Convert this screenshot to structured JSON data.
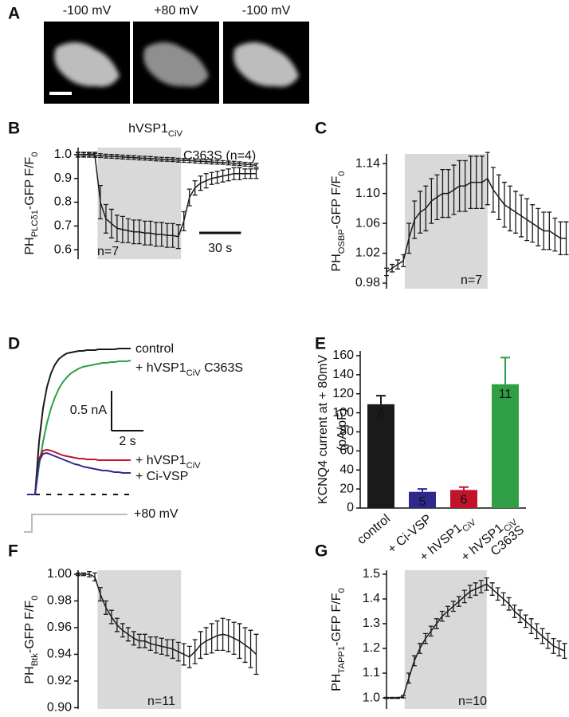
{
  "panel_a": {
    "panel": "A",
    "labels": [
      "-100 mV",
      "+80 mV",
      "-100 mV"
    ]
  },
  "chart_data": [
    {
      "panel": "B",
      "type": "line",
      "title": [
        "hVSP1",
        "CiV"
      ],
      "ylabel": [
        "PH",
        "PLCδ1",
        "-GFP  F/F",
        "0"
      ],
      "x": [
        0,
        4,
        8,
        12,
        16,
        20,
        24,
        28,
        32,
        36,
        40,
        44,
        48,
        52,
        56,
        60,
        64,
        68,
        72,
        76,
        80,
        84,
        88,
        92,
        96,
        100,
        104,
        108,
        112,
        116,
        120,
        124,
        128
      ],
      "xlim": [
        0,
        130
      ],
      "ylim": [
        0.56,
        1.03
      ],
      "yticks": [
        0.6,
        0.7,
        0.8,
        0.9,
        {
          "value": 1,
          "label": "1.0"
        }
      ],
      "shade": [
        14,
        74
      ],
      "scalebar": {
        "value": 30,
        "label": "30 s"
      },
      "annotations": [
        "C363S (n=4)",
        "n=7"
      ],
      "series": [
        {
          "color": "#1a1a1a",
          "values": [
            1.0,
            1.0,
            1.0,
            1.0,
            0.8,
            0.73,
            0.71,
            0.69,
            0.685,
            0.68,
            0.675,
            0.675,
            0.67,
            0.67,
            0.665,
            0.665,
            0.66,
            0.66,
            0.655,
            0.72,
            0.82,
            0.86,
            0.88,
            0.89,
            0.9,
            0.905,
            0.91,
            0.915,
            0.92,
            0.92,
            0.92,
            0.92,
            0.92
          ],
          "errors": [
            0.01,
            0.01,
            0.01,
            0.01,
            0.07,
            0.06,
            0.06,
            0.055,
            0.055,
            0.05,
            0.05,
            0.05,
            0.05,
            0.05,
            0.05,
            0.05,
            0.05,
            0.05,
            0.05,
            0.04,
            0.035,
            0.03,
            0.03,
            0.03,
            0.025,
            0.025,
            0.025,
            0.025,
            0.025,
            0.025,
            0.02,
            0.02,
            0.02
          ]
        },
        {
          "color": "#1a1a1a",
          "values": [
            1.0,
            1.0,
            0.998,
            0.997,
            0.996,
            0.994,
            0.993,
            0.992,
            0.99,
            0.989,
            0.988,
            0.986,
            0.985,
            0.984,
            0.982,
            0.981,
            0.98,
            0.979,
            0.977,
            0.976,
            0.975,
            0.973,
            0.972,
            0.971,
            0.969,
            0.968,
            0.967,
            0.965,
            0.964,
            0.962,
            0.96,
            0.958,
            0.955
          ],
          "errors": [
            0.008,
            0.008,
            0.008,
            0.008,
            0.008,
            0.008,
            0.008,
            0.008,
            0.008,
            0.008,
            0.008,
            0.008,
            0.008,
            0.008,
            0.008,
            0.008,
            0.008,
            0.008,
            0.008,
            0.008,
            0.008,
            0.008,
            0.008,
            0.008,
            0.008,
            0.008,
            0.008,
            0.008,
            0.008,
            0.008,
            0.008,
            0.008,
            0.008
          ]
        }
      ]
    },
    {
      "panel": "C",
      "type": "line",
      "ylabel": [
        "PH",
        "OSBP",
        "-GFP  F/F",
        "0"
      ],
      "x": [
        0,
        4,
        8,
        12,
        16,
        20,
        24,
        28,
        32,
        36,
        40,
        44,
        48,
        52,
        56,
        60,
        64,
        68,
        72,
        76,
        80,
        84,
        88,
        92,
        96,
        100,
        104,
        108,
        112,
        116,
        120,
        124,
        128
      ],
      "xlim": [
        0,
        130
      ],
      "ylim": [
        0.9725,
        1.153
      ],
      "yticks": [
        0.98,
        1.02,
        1.06,
        {
          "value": 1.1,
          "label": "1.10"
        },
        1.14
      ],
      "shade": [
        13,
        72
      ],
      "annotations": [
        "n=7"
      ],
      "series": [
        {
          "color": "#1a1a1a",
          "values": [
            0.995,
            1.0,
            1.005,
            1.01,
            1.04,
            1.065,
            1.075,
            1.08,
            1.09,
            1.095,
            1.1,
            1.1,
            1.105,
            1.11,
            1.11,
            1.115,
            1.115,
            1.115,
            1.12,
            1.105,
            1.095,
            1.085,
            1.08,
            1.075,
            1.07,
            1.065,
            1.06,
            1.055,
            1.05,
            1.05,
            1.045,
            1.04,
            1.04
          ],
          "errors": [
            0.005,
            0.005,
            0.006,
            0.008,
            0.02,
            0.025,
            0.028,
            0.03,
            0.03,
            0.03,
            0.032,
            0.032,
            0.033,
            0.034,
            0.034,
            0.035,
            0.035,
            0.035,
            0.035,
            0.03,
            0.03,
            0.03,
            0.03,
            0.028,
            0.028,
            0.028,
            0.025,
            0.025,
            0.025,
            0.025,
            0.022,
            0.022,
            0.022
          ]
        }
      ]
    },
    {
      "panel": "D",
      "type": "trace",
      "x": [
        -0.5,
        -0.25,
        0,
        0.25,
        0.5,
        0.75,
        1,
        1.25,
        1.5,
        1.75,
        2,
        2.25,
        2.5,
        2.75,
        3,
        3.25,
        3.5,
        3.75,
        4,
        4.25,
        4.5,
        4.75,
        5,
        5.25,
        5.5,
        5.75,
        6
      ],
      "scalebars": [
        {
          "value": 0.5,
          "label": "0.5 nA"
        },
        {
          "value": 2,
          "label": "2 s"
        }
      ],
      "protocol_label": "+80 mV",
      "series": [
        {
          "name": [
            "control"
          ],
          "color": "#1a1a1a",
          "values": [
            0,
            0,
            0,
            0.66,
            1.08,
            1.35,
            1.52,
            1.63,
            1.7,
            1.74,
            1.77,
            1.78,
            1.79,
            1.8,
            1.8,
            1.81,
            1.81,
            1.81,
            1.82,
            1.82,
            1.82,
            1.82,
            1.82,
            1.83,
            1.83,
            1.83,
            1.83
          ]
        },
        {
          "name": [
            "+ hVSP1",
            "CiV",
            " C363S"
          ],
          "color": "#2f9e44",
          "values": [
            0,
            0,
            0,
            0.36,
            0.66,
            0.9,
            1.08,
            1.22,
            1.33,
            1.41,
            1.47,
            1.52,
            1.55,
            1.58,
            1.6,
            1.61,
            1.62,
            1.63,
            1.64,
            1.65,
            1.65,
            1.66,
            1.66,
            1.67,
            1.67,
            1.67,
            1.68
          ]
        },
        {
          "name": [
            "+ hVSP1",
            "CiV"
          ],
          "color": "#c0142a",
          "values": [
            0,
            0,
            0,
            0.45,
            0.55,
            0.56,
            0.55,
            0.53,
            0.51,
            0.49,
            0.48,
            0.47,
            0.46,
            0.45,
            0.45,
            0.44,
            0.44,
            0.44,
            0.43,
            0.43,
            0.43,
            0.43,
            0.43,
            0.43,
            0.43,
            0.43,
            0.43
          ]
        },
        {
          "name": [
            "+ Ci-VSP"
          ],
          "color": "#2e2a8c",
          "values": [
            0,
            0,
            0,
            0.42,
            0.51,
            0.52,
            0.5,
            0.48,
            0.46,
            0.44,
            0.42,
            0.4,
            0.38,
            0.37,
            0.35,
            0.34,
            0.33,
            0.32,
            0.31,
            0.3,
            0.3,
            0.29,
            0.28,
            0.28,
            0.27,
            0.27,
            0.27
          ]
        }
      ]
    },
    {
      "panel": "E",
      "type": "bar",
      "ylabel": [
        "KCNQ4 current at + 80mV",
        "(pA/pF)"
      ],
      "categories": [
        [
          [
            "control"
          ]
        ],
        [
          [
            "+ Ci-VSP"
          ]
        ],
        [
          [
            "+ hVSP1",
            "CiV"
          ]
        ],
        [
          [
            "+ hVSP1",
            "CiV"
          ],
          [
            "C363S"
          ]
        ]
      ],
      "colors": [
        "#1a1a1a",
        "#2e2a8c",
        "#c0142a",
        "#2f9e44"
      ],
      "values": [
        109,
        17,
        19,
        130
      ],
      "errors": [
        9,
        3,
        3,
        28
      ],
      "n_labels": [
        "6",
        "5",
        "6",
        "11"
      ],
      "ylim": [
        0,
        165
      ],
      "yticks": [
        0,
        20,
        40,
        60,
        80,
        100,
        120,
        140,
        160
      ]
    },
    {
      "panel": "F",
      "type": "line",
      "ylabel": [
        "PH",
        "Btk",
        "-GFP  F/F",
        "0"
      ],
      "x": [
        0,
        4,
        8,
        12,
        16,
        20,
        24,
        28,
        32,
        36,
        40,
        44,
        48,
        52,
        56,
        60,
        64,
        68,
        72,
        76,
        80,
        84,
        88,
        92,
        96,
        100,
        104,
        108,
        112,
        116,
        120,
        124,
        128
      ],
      "xlim": [
        0,
        130
      ],
      "ylim": [
        0.899,
        1.003
      ],
      "yticks": [
        {
          "value": 0.9,
          "label": "0.90"
        },
        0.92,
        0.94,
        0.96,
        0.98,
        {
          "value": 1,
          "label": "1.00"
        }
      ],
      "shade": [
        14,
        74
      ],
      "annotations": [
        "n=11"
      ],
      "series": [
        {
          "color": "#1a1a1a",
          "values": [
            1.0,
            1.0,
            1.0,
            0.998,
            0.985,
            0.975,
            0.968,
            0.962,
            0.958,
            0.955,
            0.952,
            0.95,
            0.95,
            0.948,
            0.947,
            0.946,
            0.945,
            0.944,
            0.942,
            0.94,
            0.938,
            0.942,
            0.947,
            0.95,
            0.952,
            0.954,
            0.955,
            0.954,
            0.952,
            0.95,
            0.947,
            0.944,
            0.94
          ],
          "errors": [
            0.001,
            0.001,
            0.002,
            0.003,
            0.005,
            0.005,
            0.005,
            0.005,
            0.005,
            0.005,
            0.005,
            0.005,
            0.005,
            0.005,
            0.006,
            0.006,
            0.006,
            0.007,
            0.007,
            0.008,
            0.008,
            0.009,
            0.01,
            0.01,
            0.011,
            0.011,
            0.012,
            0.012,
            0.012,
            0.013,
            0.013,
            0.014,
            0.015
          ]
        }
      ]
    },
    {
      "panel": "G",
      "type": "line",
      "ylabel": [
        "PH",
        "TAPP1",
        "-GFP  F/F",
        "0"
      ],
      "x": [
        0,
        4,
        8,
        12,
        16,
        20,
        24,
        28,
        32,
        36,
        40,
        44,
        48,
        52,
        56,
        60,
        64,
        68,
        72,
        76,
        80,
        84,
        88,
        92,
        96,
        100,
        104,
        108,
        112,
        116,
        120,
        124,
        128
      ],
      "xlim": [
        0,
        130
      ],
      "ylim": [
        0.955,
        1.516
      ],
      "yticks": [
        {
          "value": 1,
          "label": "1.0"
        },
        1.1,
        1.2,
        1.3,
        1.4,
        1.5
      ],
      "shade": [
        13,
        72
      ],
      "annotations": [
        "n=10"
      ],
      "series": [
        {
          "color": "#1a1a1a",
          "values": [
            1.0,
            1.0,
            1.0,
            1.005,
            1.08,
            1.15,
            1.2,
            1.24,
            1.27,
            1.3,
            1.33,
            1.35,
            1.37,
            1.39,
            1.41,
            1.43,
            1.44,
            1.45,
            1.46,
            1.44,
            1.42,
            1.4,
            1.38,
            1.35,
            1.33,
            1.31,
            1.29,
            1.27,
            1.25,
            1.23,
            1.21,
            1.2,
            1.19
          ],
          "errors": [
            0.002,
            0.002,
            0.002,
            0.005,
            0.02,
            0.02,
            0.02,
            0.02,
            0.02,
            0.02,
            0.02,
            0.02,
            0.02,
            0.02,
            0.025,
            0.025,
            0.025,
            0.025,
            0.025,
            0.025,
            0.025,
            0.025,
            0.025,
            0.025,
            0.025,
            0.025,
            0.03,
            0.03,
            0.03,
            0.03,
            0.03,
            0.03,
            0.03
          ]
        }
      ]
    }
  ]
}
